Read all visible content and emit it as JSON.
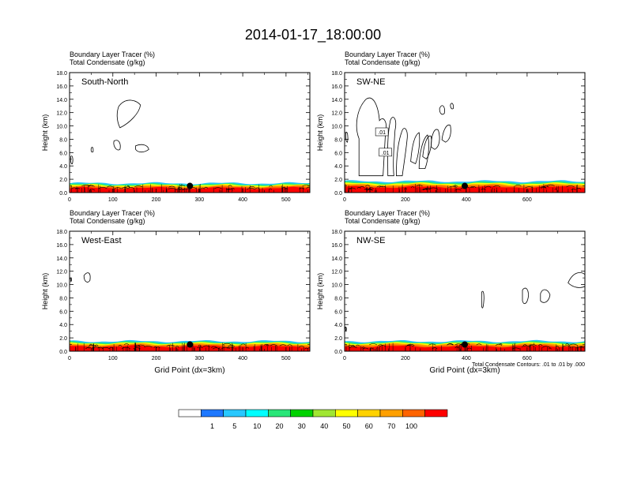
{
  "title": "2014-01-17_18:00:00",
  "panel_header": {
    "line1": "Boundary Layer Tracer   (%)",
    "line2": "Total Condensate   (g/kg)"
  },
  "y_axis_label": "Height (km)",
  "x_axis_label": "Grid Point (dx=3km)",
  "contour_note": "Total Condensate Contours: .01 to .01 by .000",
  "contour_labels": [
    ".01",
    ".01"
  ],
  "colorbar": {
    "colors": [
      "#ffffff",
      "#1e78ff",
      "#28c8ff",
      "#00ffff",
      "#28e678",
      "#00d200",
      "#a0e632",
      "#ffff00",
      "#ffd200",
      "#ffa000",
      "#ff6400",
      "#ff0000"
    ],
    "labels": [
      "1",
      "5",
      "10",
      "20",
      "30",
      "40",
      "50",
      "60",
      "70",
      "100"
    ]
  },
  "chart_data": [
    {
      "type": "heatmap",
      "name": "South-North",
      "title": "South-North",
      "xlabel": "",
      "ylabel": "Height (km)",
      "xlim": [
        0,
        555
      ],
      "ylim": [
        0,
        18
      ],
      "xticks": [
        "0",
        "100",
        "200",
        "300",
        "400",
        "500"
      ],
      "xtick_values": [
        0,
        100,
        200,
        300,
        400,
        500
      ],
      "yticks": [
        "0.0",
        "2.0",
        "4.0",
        "6.0",
        "8.0",
        "10.0",
        "12.0",
        "14.0",
        "16.0",
        "18.0"
      ],
      "marker": {
        "x": 278,
        "y": 1.0
      },
      "tracer_top_km": 1.4
    },
    {
      "type": "heatmap",
      "name": "SW-NE",
      "title": "SW-NE",
      "xlabel": "",
      "ylabel": "Height (km)",
      "xlim": [
        0,
        790
      ],
      "ylim": [
        0,
        18
      ],
      "xticks": [
        "0",
        "200",
        "400",
        "600"
      ],
      "xtick_values": [
        0,
        200,
        400,
        600
      ],
      "yticks": [
        "0.0",
        "2.0",
        "4.0",
        "6.0",
        "8.0",
        "10.0",
        "12.0",
        "14.0",
        "16.0",
        "18.0"
      ],
      "marker": {
        "x": 395,
        "y": 1.0
      },
      "tracer_top_km": 1.7
    },
    {
      "type": "heatmap",
      "name": "West-East",
      "title": "West-East",
      "xlabel": "Grid Point (dx=3km)",
      "ylabel": "Height (km)",
      "xlim": [
        0,
        555
      ],
      "ylim": [
        0,
        18
      ],
      "xticks": [
        "0",
        "100",
        "200",
        "300",
        "400",
        "500"
      ],
      "xtick_values": [
        0,
        100,
        200,
        300,
        400,
        500
      ],
      "yticks": [
        "0.0",
        "2.0",
        "4.0",
        "6.0",
        "8.0",
        "10.0",
        "12.0",
        "14.0",
        "16.0",
        "18.0"
      ],
      "marker": {
        "x": 278,
        "y": 1.0
      },
      "tracer_top_km": 1.5
    },
    {
      "type": "heatmap",
      "name": "NW-SE",
      "title": "NW-SE",
      "xlabel": "Grid Point (dx=3km)",
      "ylabel": "Height (km)",
      "xlim": [
        0,
        790
      ],
      "ylim": [
        0,
        18
      ],
      "xticks": [
        "0",
        "200",
        "400",
        "600"
      ],
      "xtick_values": [
        0,
        200,
        400,
        600
      ],
      "yticks": [
        "0.0",
        "2.0",
        "4.0",
        "6.0",
        "8.0",
        "10.0",
        "12.0",
        "14.0",
        "16.0",
        "18.0"
      ],
      "marker": {
        "x": 395,
        "y": 1.0
      },
      "tracer_top_km": 1.5
    }
  ]
}
